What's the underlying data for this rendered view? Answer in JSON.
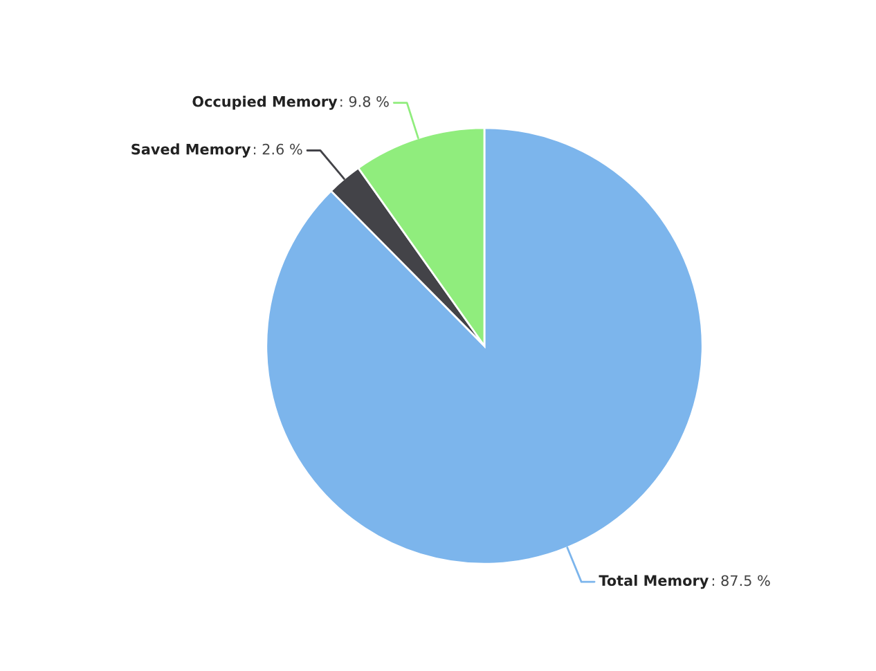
{
  "chart_data": {
    "type": "pie",
    "categories": [
      "Total Memory",
      "Saved Memory",
      "Occupied Memory"
    ],
    "values": [
      87.5,
      2.6,
      9.8
    ],
    "value_labels": [
      ": 87.5 %",
      ": 2.6 %",
      ": 9.8 %"
    ],
    "colors": [
      "#7cb5ec",
      "#434348",
      "#90ed7d"
    ],
    "legend": false
  }
}
